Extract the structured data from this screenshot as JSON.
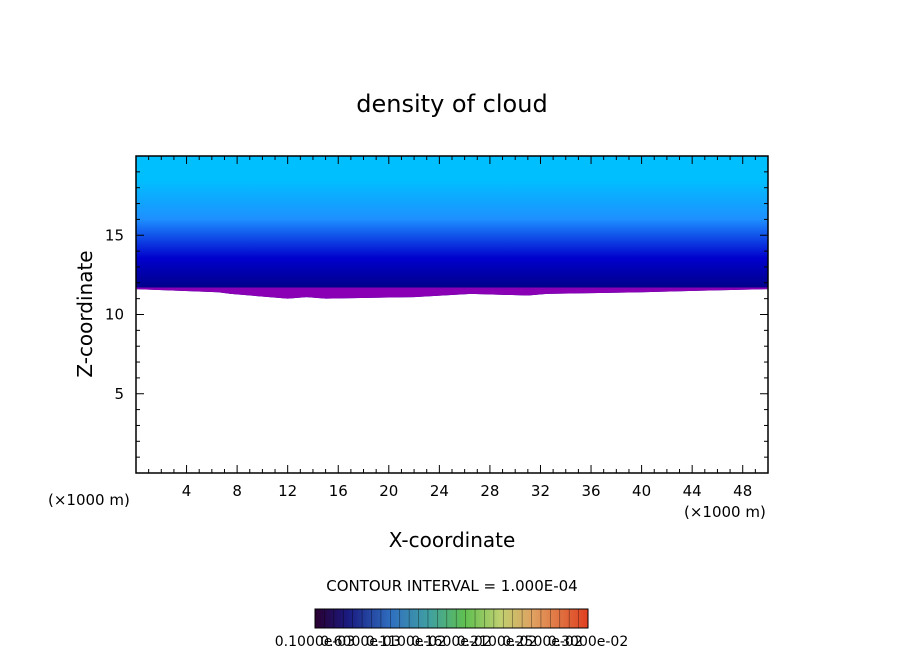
{
  "chart_data": {
    "type": "heatmap",
    "title": "density of cloud",
    "xlabel": "X-coordinate",
    "ylabel": "Z-coordinate",
    "x_unit_left": "(×1000 m)",
    "x_unit_right": "(×1000 m)",
    "xlim": [
      0,
      50
    ],
    "ylim": [
      0,
      20
    ],
    "xticks": [
      4,
      8,
      12,
      16,
      20,
      24,
      28,
      32,
      36,
      40,
      44,
      48
    ],
    "yticks": [
      5,
      10,
      15
    ],
    "contour_interval_label": "CONTOUR INTERVAL = 1.000E-04",
    "colorbar": {
      "min": 0.0001,
      "max": 0.003,
      "tick_labels": [
        "0.1000e-03",
        "0.6000e-03",
        "0.1100e-02",
        "0.1600e-02",
        "0.2100e-02",
        "0.2500e-02",
        "0.3000e-02"
      ]
    },
    "cloud_base_profile": {
      "x": [
        0,
        6.5,
        7.5,
        12,
        13.5,
        15,
        22,
        26.5,
        31,
        32.5,
        40,
        44.5,
        50
      ],
      "z": [
        11.6,
        11.4,
        11.3,
        11.0,
        11.1,
        11.0,
        11.1,
        11.3,
        11.2,
        11.3,
        11.4,
        11.5,
        11.6
      ]
    },
    "cloud_top": 19.8,
    "colors": {
      "top": "#00bfff",
      "upper": "#1e90ff",
      "middle": "#0000cd",
      "lower": "#00008b",
      "base": "#8a00b4"
    }
  }
}
